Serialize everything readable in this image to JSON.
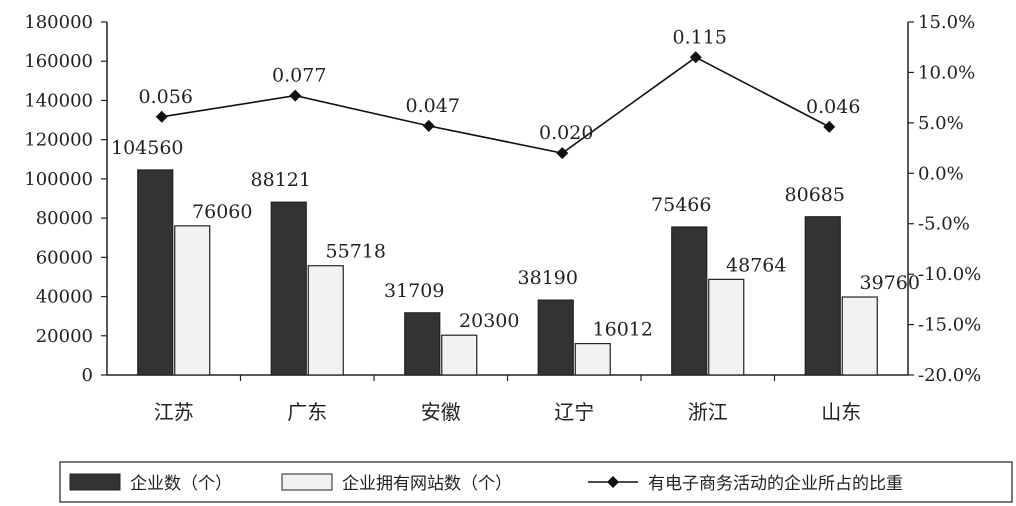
{
  "chart_data": {
    "type": "bar",
    "categories": [
      "江苏",
      "广东",
      "安徽",
      "辽宁",
      "浙江",
      "山东"
    ],
    "series": [
      {
        "name": "企业数（个）",
        "type": "bar",
        "axis": "left",
        "color": "#333333",
        "values": [
          104560,
          88121,
          31709,
          38190,
          75466,
          80685
        ],
        "labels": [
          "104560",
          "88121",
          "31709",
          "38190",
          "75466",
          "80685"
        ]
      },
      {
        "name": "企业拥有网站数（个）",
        "type": "bar",
        "axis": "left",
        "color": "#f2f2f2",
        "values": [
          76060,
          55718,
          20300,
          16012,
          48764,
          39760
        ],
        "labels": [
          "76060",
          "55718",
          "20300",
          "16012",
          "48764",
          "39760"
        ]
      },
      {
        "name": "有电子商务活动的企业所占的比重",
        "type": "line",
        "axis": "right",
        "color": "#111111",
        "values": [
          0.056,
          0.077,
          0.047,
          0.02,
          0.115,
          0.046
        ],
        "labels": [
          "0.056",
          "0.077",
          "0.047",
          "0.020",
          "0.115",
          "0.046"
        ]
      }
    ],
    "y_left": {
      "range": [
        0,
        180000
      ],
      "ticks": [
        "0",
        "20000",
        "40000",
        "60000",
        "80000",
        "100000",
        "120000",
        "140000",
        "160000",
        "180000"
      ]
    },
    "y_right": {
      "range": [
        -0.2,
        0.15
      ],
      "ticks": [
        "-20.0%",
        "-15.0%",
        "-10.0%",
        "-5.0%",
        "0.0%",
        "5.0%",
        "10.0%",
        "15.0%"
      ]
    },
    "legend_position": "bottom",
    "grid": false
  }
}
